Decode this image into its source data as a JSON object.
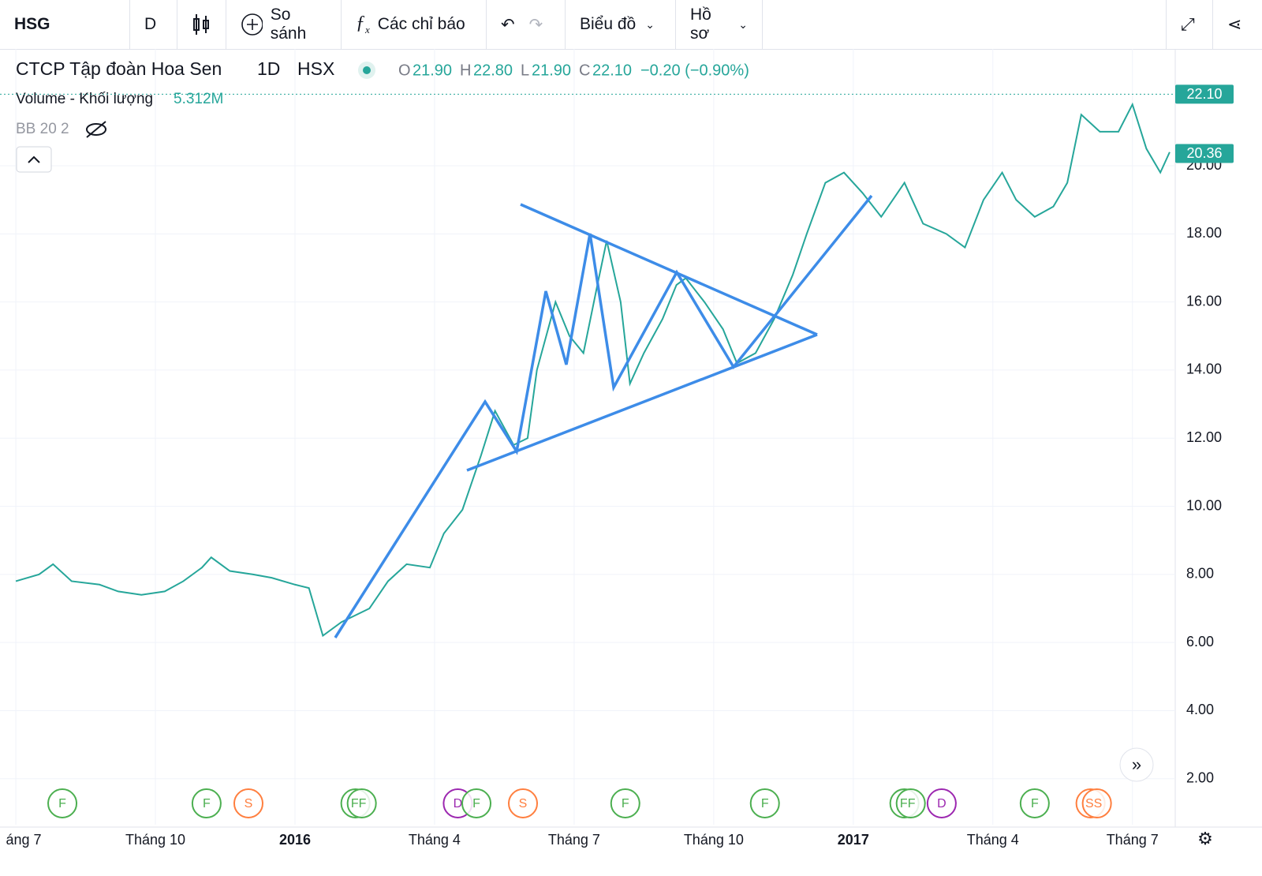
{
  "toolbar": {
    "symbol": "HSG",
    "interval": "D",
    "compare": "So sánh",
    "indicators": "Các chỉ báo",
    "chart": "Biểu đồ",
    "profile": "Hồ sơ"
  },
  "legend": {
    "name": "CTCP Tập đoàn Hoa Sen",
    "interval": "1D",
    "exchange": "HSX",
    "o_label": "O",
    "open": "21.90",
    "h_label": "H",
    "high": "22.80",
    "l_label": "L",
    "low": "21.90",
    "c_label": "C",
    "close": "22.10",
    "change": "−0.20 (−0.90%)",
    "volume_label": "Volume - Khối lượng",
    "volume": "5.312M",
    "bb": "BB 20 2"
  },
  "chart_data": {
    "type": "line",
    "color": "#26a69a",
    "x": [
      0,
      0.5,
      0.8,
      1.2,
      1.8,
      2.2,
      2.7,
      3.2,
      3.6,
      4.0,
      4.2,
      4.6,
      5.1,
      5.5,
      6.0,
      6.3,
      6.6,
      7.0,
      7.6,
      8.0,
      8.4,
      8.9,
      9.2,
      9.6,
      10.0,
      10.3,
      10.7,
      11.0,
      11.2,
      11.6,
      11.9,
      12.2,
      12.5,
      12.7,
      13.0,
      13.2,
      13.5,
      13.9,
      14.2,
      14.4,
      14.8,
      15.2,
      15.5,
      15.9,
      16.3,
      16.7,
      17.0,
      17.4,
      17.8,
      18.2,
      18.6,
      19.1,
      19.5,
      20.0,
      20.4,
      20.8,
      21.2,
      21.5,
      21.9,
      22.3,
      22.6,
      22.9,
      23.3,
      23.7,
      24.0,
      24.3,
      24.6,
      24.8
    ],
    "values": [
      7.8,
      8.0,
      8.3,
      7.8,
      7.7,
      7.5,
      7.4,
      7.5,
      7.8,
      8.2,
      8.5,
      8.1,
      8.0,
      7.9,
      7.7,
      7.6,
      6.2,
      6.6,
      7.0,
      7.8,
      8.3,
      8.2,
      9.2,
      9.9,
      11.5,
      12.8,
      11.8,
      12.0,
      14.0,
      16.0,
      15.0,
      14.5,
      16.5,
      17.8,
      16.0,
      13.6,
      14.5,
      15.5,
      16.5,
      16.7,
      16.0,
      15.2,
      14.2,
      14.5,
      15.5,
      16.8,
      18.0,
      19.5,
      19.8,
      19.2,
      18.5,
      19.5,
      18.3,
      18.0,
      17.6,
      19.0,
      19.8,
      19.0,
      18.5,
      18.8,
      19.5,
      21.5,
      21.0,
      21.0,
      21.8,
      20.5,
      19.8,
      20.4
    ],
    "xlim": [
      -0.34,
      24.92
    ],
    "ylim": [
      0.65,
      23.43
    ],
    "yticks": [
      {
        "value": 2,
        "label": "2.00"
      },
      {
        "value": 4,
        "label": "4.00"
      },
      {
        "value": 6,
        "label": "6.00"
      },
      {
        "value": 8,
        "label": "8.00"
      },
      {
        "value": 10,
        "label": "10.00"
      },
      {
        "value": 12,
        "label": "12.00"
      },
      {
        "value": 14,
        "label": "14.00"
      },
      {
        "value": 16,
        "label": "16.00"
      },
      {
        "value": 18,
        "label": "18.00"
      },
      {
        "value": 20,
        "label": "20.00"
      }
    ],
    "xticks": [
      {
        "value": 0,
        "label": "áng 7"
      },
      {
        "value": 3,
        "label": "Tháng 10"
      },
      {
        "value": 6,
        "label": "2016"
      },
      {
        "value": 9,
        "label": "Tháng 4"
      },
      {
        "value": 12,
        "label": "Tháng 7"
      },
      {
        "value": 15,
        "label": "Tháng 10"
      },
      {
        "value": 18,
        "label": "2017"
      },
      {
        "value": 21,
        "label": "Tháng 4"
      },
      {
        "value": 24,
        "label": "Tháng 7"
      }
    ],
    "price_labels": [
      {
        "value": 22.1,
        "label": "22.10"
      },
      {
        "value": 20.36,
        "label": "20.36"
      }
    ],
    "grid": true,
    "events": [
      {
        "x": 1.0,
        "label": "F",
        "color": "#4caf50"
      },
      {
        "x": 4.1,
        "label": "F",
        "color": "#4caf50"
      },
      {
        "x": 5.0,
        "label": "S",
        "color": "#ff7f3f"
      },
      {
        "x": 7.3,
        "label": "FF",
        "color": "#4caf50"
      },
      {
        "x": 9.5,
        "label": "D",
        "color": "#9c27b0"
      },
      {
        "x": 9.9,
        "label": "F",
        "color": "#4caf50"
      },
      {
        "x": 10.9,
        "label": "S",
        "color": "#ff7f3f"
      },
      {
        "x": 13.1,
        "label": "F",
        "color": "#4caf50"
      },
      {
        "x": 16.1,
        "label": "F",
        "color": "#4caf50"
      },
      {
        "x": 19.1,
        "label": "FF",
        "color": "#4caf50"
      },
      {
        "x": 19.9,
        "label": "D",
        "color": "#9c27b0"
      },
      {
        "x": 21.9,
        "label": "F",
        "color": "#4caf50"
      },
      {
        "x": 23.1,
        "label": "SS",
        "color": "#ff7f3f"
      }
    ]
  }
}
